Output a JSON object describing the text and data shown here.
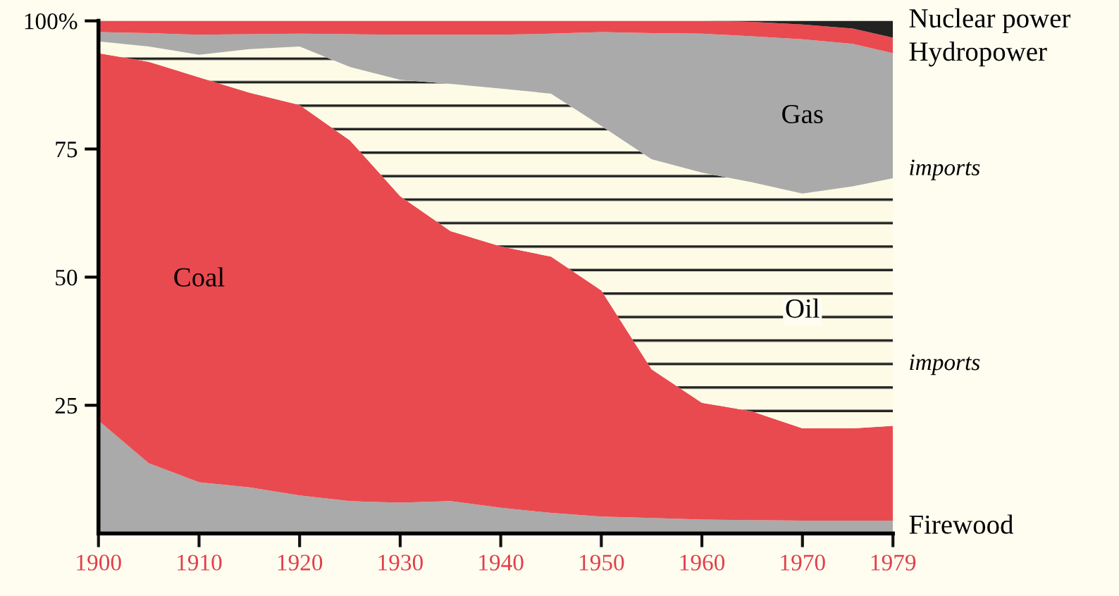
{
  "chart_data": {
    "type": "area",
    "stacked": true,
    "x": [
      1900,
      1905,
      1910,
      1915,
      1920,
      1925,
      1930,
      1935,
      1940,
      1945,
      1950,
      1955,
      1960,
      1965,
      1970,
      1975,
      1979
    ],
    "series": [
      {
        "name": "Firewood",
        "color": "#aaaaaa",
        "values": [
          22,
          13.7,
          10,
          9,
          7.4,
          6.3,
          6,
          6.3,
          5,
          4,
          3.3,
          3,
          2.7,
          2.6,
          2.5,
          2.5,
          2.5
        ]
      },
      {
        "name": "Coal",
        "color": "#e94a50",
        "values": [
          71.7,
          78.3,
          79,
          77,
          76.2,
          70.4,
          59.8,
          52.7,
          51,
          50,
          44.1,
          29,
          22.8,
          21.2,
          18,
          18,
          18.5
        ]
      },
      {
        "name": "Oil",
        "color": "#fdfbe6",
        "values": [
          2.3,
          3,
          4.4,
          8.5,
          11.4,
          14.3,
          22.7,
          28.7,
          30.8,
          31.8,
          32.1,
          41,
          44.9,
          44.7,
          45.8,
          47.2,
          48.3
        ]
      },
      {
        "name": "Gas",
        "color": "#aaaaaa",
        "values": [
          1.8,
          2.6,
          3.9,
          2.9,
          2.5,
          6.4,
          8.8,
          9.6,
          10.5,
          11.7,
          18.3,
          24.6,
          27.1,
          28.5,
          30.1,
          27.8,
          24.4
        ]
      },
      {
        "name": "Hydropower",
        "color": "#e94a50",
        "values": [
          2.2,
          2.4,
          2.7,
          2.6,
          2.5,
          2.6,
          2.7,
          2.7,
          2.7,
          2.5,
          2.2,
          2.4,
          2.5,
          2.8,
          2.9,
          3,
          3
        ]
      },
      {
        "name": "Nuclear power",
        "color": "#222222",
        "values": [
          0,
          0,
          0,
          0,
          0,
          0,
          0,
          0,
          0,
          0,
          0,
          0,
          0,
          0.2,
          0.7,
          1.5,
          3.3
        ]
      }
    ],
    "xlim": [
      1900,
      1979
    ],
    "xticks": [
      1900,
      1910,
      1920,
      1930,
      1940,
      1950,
      1960,
      1970,
      1979
    ],
    "ylim": [
      0,
      100
    ],
    "yticks": [
      25,
      50,
      75,
      {
        "value": 100,
        "label": "100%"
      }
    ],
    "annotations": [
      {
        "text": "imports",
        "x": 1979,
        "y": 71
      },
      {
        "text": "imports",
        "x": 1979,
        "y": 33
      }
    ],
    "legend": false,
    "grid": false
  }
}
